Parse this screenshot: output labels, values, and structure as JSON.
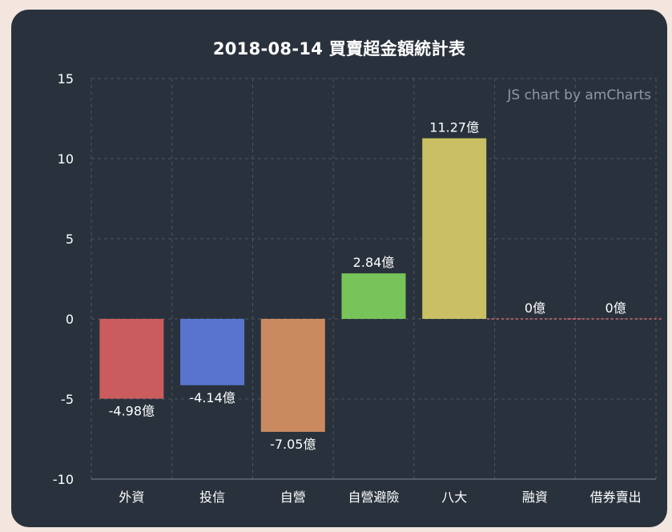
{
  "title": "2018-08-14 買賣超金額統計表",
  "credit": "JS chart by amCharts",
  "chart_data": {
    "type": "bar",
    "title": "2018-08-14 買賣超金額統計表",
    "categories": [
      "外資",
      "投信",
      "自營",
      "自營避險",
      "八大",
      "融資",
      "借券賣出"
    ],
    "values": [
      -4.98,
      -4.14,
      -7.05,
      2.84,
      11.27,
      0,
      0
    ],
    "value_labels": [
      "-4.98億",
      "-4.14億",
      "-7.05億",
      "2.84億",
      "11.27億",
      "0億",
      "0億"
    ],
    "colors": [
      "#d35f5f",
      "#5b78d6",
      "#d28f62",
      "#7ccc5c",
      "#d3c764",
      "#d36a72",
      "#d36a72"
    ],
    "ylim": [
      -10,
      15
    ],
    "yticks": [
      15,
      10,
      5,
      0,
      -5,
      -10
    ],
    "ytick_labels": [
      "15",
      "10",
      "5",
      "0",
      "-5",
      "-10"
    ],
    "grid": true,
    "xlabel": "",
    "ylabel": ""
  }
}
